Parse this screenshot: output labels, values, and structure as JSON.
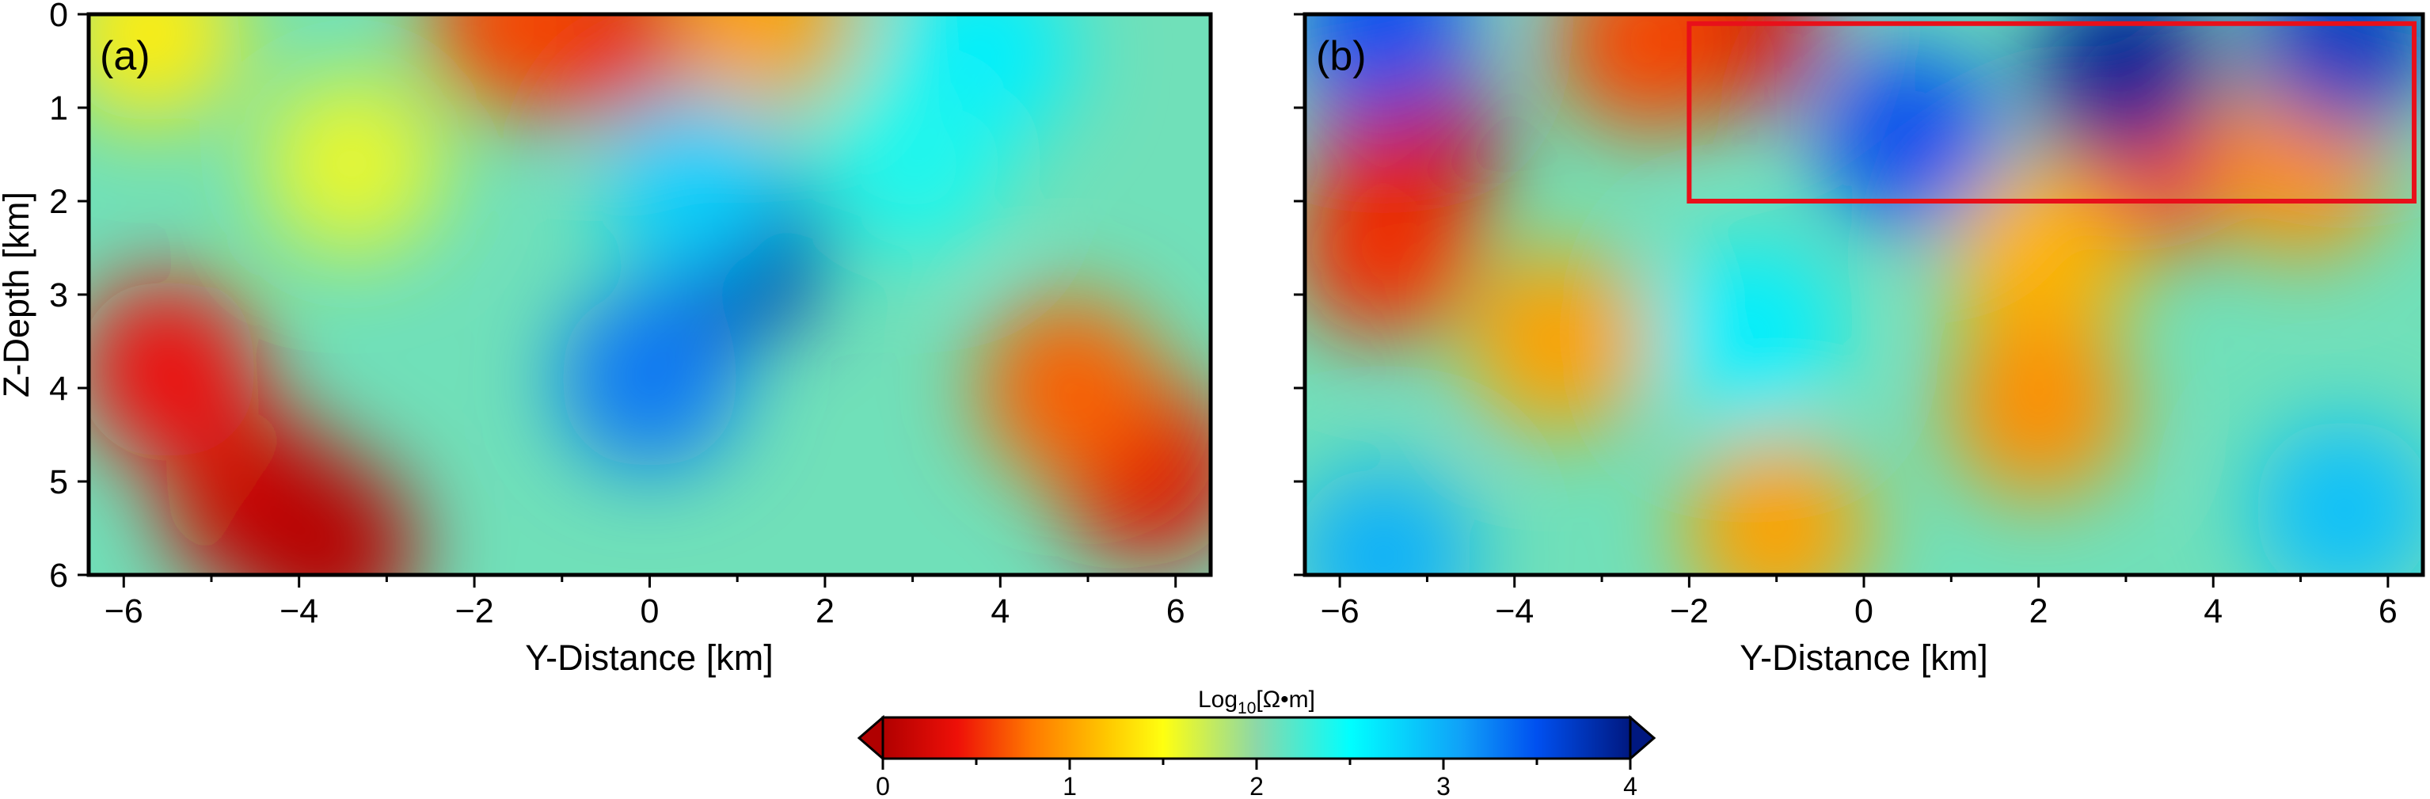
{
  "chart_data": [
    {
      "type": "heatmap",
      "panel_label": "(a)",
      "xlabel": "Y-Distance [km]",
      "ylabel": "Z-Depth [km]",
      "xlim": [
        -6.4,
        6.4
      ],
      "ylim": [
        6,
        0
      ],
      "xticks": [
        -6,
        -4,
        -2,
        0,
        2,
        4,
        6
      ],
      "xtick_labels": [
        "−6",
        "−4",
        "−2",
        "0",
        "2",
        "4",
        "6"
      ],
      "yticks": [
        0,
        1,
        2,
        3,
        4,
        5,
        6
      ],
      "ytick_labels": [
        "0",
        "1",
        "2",
        "3",
        "4",
        "5",
        "6"
      ],
      "value_label": "log10 resistivity (approx.)",
      "features": [
        {
          "y": -4.5,
          "z": 5.2,
          "value": 0.2
        },
        {
          "y": -3.7,
          "z": 5.7,
          "value": 0.05
        },
        {
          "y": -5.5,
          "z": 3.8,
          "value": 0.4
        },
        {
          "y": 5.7,
          "z": 4.9,
          "value": 0.3
        },
        {
          "y": 4.8,
          "z": 4.0,
          "value": 0.7
        },
        {
          "y": -0.5,
          "z": 0.2,
          "value": 0.3
        },
        {
          "y": -1.5,
          "z": 0.1,
          "value": 0.6
        },
        {
          "y": 1.3,
          "z": 0.0,
          "value": 1.0
        },
        {
          "y": -5.7,
          "z": 0.2,
          "value": 1.4
        },
        {
          "y": -3.4,
          "z": 1.6,
          "value": 1.6
        },
        {
          "y": 1.0,
          "z": 2.5,
          "value": 3.8
        },
        {
          "y": 0.0,
          "z": 3.9,
          "value": 3.3
        },
        {
          "y": 0.5,
          "z": 1.8,
          "value": 2.8
        },
        {
          "y": 3.8,
          "z": 0.4,
          "value": 2.6
        },
        {
          "y": 3.0,
          "z": 1.6,
          "value": 2.4
        }
      ]
    },
    {
      "type": "heatmap",
      "panel_label": "(b)",
      "xlabel": "Y-Distance [km]",
      "ylabel": "",
      "xlim": [
        -6.4,
        6.4
      ],
      "ylim": [
        6,
        0
      ],
      "xticks": [
        -6,
        -4,
        -2,
        0,
        2,
        4,
        6
      ],
      "xtick_labels": [
        "−6",
        "−4",
        "−2",
        "0",
        "2",
        "4",
        "6"
      ],
      "value_label": "log10 resistivity (approx.)",
      "features": [
        {
          "y": -5.2,
          "z": 1.4,
          "value": 0.1
        },
        {
          "y": -5.5,
          "z": 2.5,
          "value": 0.5
        },
        {
          "y": -1.5,
          "z": 0.1,
          "value": 0.2
        },
        {
          "y": -2.5,
          "z": 0.3,
          "value": 0.6
        },
        {
          "y": 3.2,
          "z": 1.6,
          "value": 0.6
        },
        {
          "y": 5.0,
          "z": 1.6,
          "value": 0.9
        },
        {
          "y": 2.0,
          "z": 2.6,
          "value": 1.1
        },
        {
          "y": 2.0,
          "z": 4.2,
          "value": 0.9
        },
        {
          "y": -3.5,
          "z": 3.5,
          "value": 1.0
        },
        {
          "y": -1.0,
          "z": 5.5,
          "value": 1.0
        },
        {
          "y": 3.0,
          "z": 0.6,
          "value": 3.9
        },
        {
          "y": 0.5,
          "z": 1.3,
          "value": 3.5
        },
        {
          "y": 5.5,
          "z": 0.3,
          "value": 3.7
        },
        {
          "y": -5.5,
          "z": 0.1,
          "value": 3.5
        },
        {
          "y": -1.3,
          "z": 3.4,
          "value": 2.6
        },
        {
          "y": -5.5,
          "z": 5.8,
          "value": 3.0
        },
        {
          "y": 5.5,
          "z": 5.3,
          "value": 2.9
        }
      ],
      "annotation_box": {
        "y_range": [
          -2.0,
          6.3
        ],
        "z_range": [
          0.1,
          2.0
        ],
        "color": "#e8101a"
      }
    }
  ],
  "colorbar": {
    "label_main": "Log",
    "label_sub": "10",
    "label_unit": "[Ω•m]",
    "min": 0,
    "max": 4,
    "ticks": [
      0,
      1,
      2,
      3,
      4
    ],
    "tick_labels": [
      "0",
      "1",
      "2",
      "3",
      "4"
    ],
    "colors": [
      {
        "value": 0.0,
        "color": "#b00000"
      },
      {
        "value": 0.4,
        "color": "#ee1008"
      },
      {
        "value": 0.8,
        "color": "#ff7a00"
      },
      {
        "value": 1.2,
        "color": "#ffc800"
      },
      {
        "value": 1.5,
        "color": "#ffff10"
      },
      {
        "value": 2.0,
        "color": "#8cd8a8"
      },
      {
        "value": 2.5,
        "color": "#00ffff"
      },
      {
        "value": 3.1,
        "color": "#10a0f8"
      },
      {
        "value": 3.5,
        "color": "#0050f0"
      },
      {
        "value": 4.0,
        "color": "#001880"
      }
    ],
    "background_value": 2.1
  }
}
